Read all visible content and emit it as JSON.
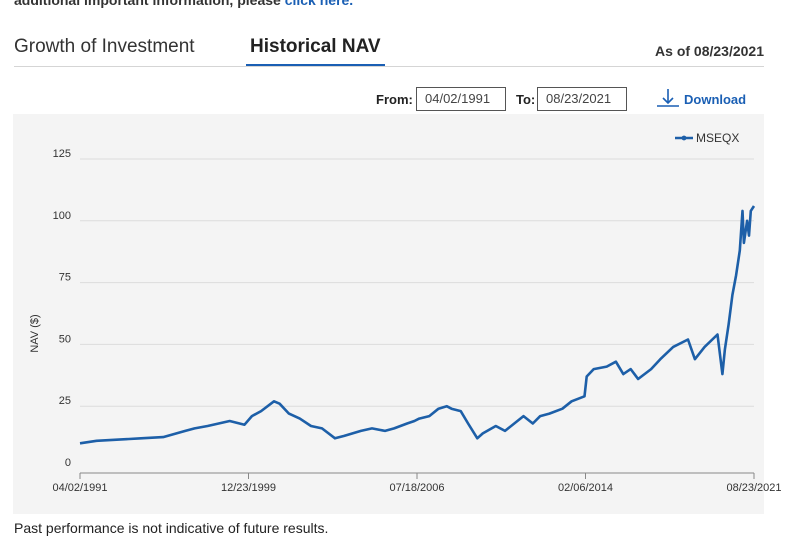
{
  "header": {
    "note_prefix": "additional important information, please ",
    "note_link": "click here."
  },
  "tabs": [
    {
      "label": "Growth of Investment",
      "active": false
    },
    {
      "label": "Historical NAV",
      "active": true
    }
  ],
  "as_of": "As of 08/23/2021",
  "controls": {
    "from_label": "From:",
    "from_value": "04/02/1991",
    "to_label": "To:",
    "to_value": "08/23/2021",
    "download_label": "Download"
  },
  "footer": "Past performance is not indicative of future results.",
  "colors": {
    "line": "#1d5fa8",
    "link": "#1a5fb4",
    "plot_bg": "#f4f4f4",
    "grid": "#dcdcdc"
  },
  "chart_data": {
    "type": "line",
    "title": "",
    "xlabel": "",
    "ylabel": "NAV ($)",
    "ylim": [
      0,
      125
    ],
    "yticks": [
      0,
      25,
      50,
      75,
      100,
      125
    ],
    "xlim": [
      "1991-04-02",
      "2021-08-23"
    ],
    "xtick_labels": [
      "04/02/1991",
      "12/23/1999",
      "07/18/2006",
      "02/06/2014",
      "08/23/2021"
    ],
    "grid": true,
    "legend_position": "top-right",
    "series": [
      {
        "name": "MSEQX",
        "x": [
          "1991-04-02",
          "1992-01-01",
          "1993-01-01",
          "1994-01-01",
          "1995-01-01",
          "1996-01-01",
          "1996-06-01",
          "1997-01-01",
          "1998-01-01",
          "1998-09-01",
          "1999-01-01",
          "1999-06-01",
          "2000-01-01",
          "2000-04-01",
          "2000-09-01",
          "2001-03-01",
          "2001-09-01",
          "2002-03-01",
          "2002-10-01",
          "2003-03-01",
          "2003-12-01",
          "2004-06-01",
          "2005-01-01",
          "2005-06-01",
          "2006-01-01",
          "2006-05-01",
          "2006-07-18",
          "2007-01-01",
          "2007-06-01",
          "2007-10-15",
          "2008-01-01",
          "2008-06-01",
          "2008-10-01",
          "2009-03-01",
          "2009-06-01",
          "2010-01-01",
          "2010-06-01",
          "2011-04-01",
          "2011-09-01",
          "2012-01-01",
          "2012-06-01",
          "2013-01-01",
          "2013-06-01",
          "2014-01-01",
          "2014-02-06",
          "2014-06-01",
          "2015-01-01",
          "2015-06-01",
          "2015-10-01",
          "2016-02-01",
          "2016-06-01",
          "2017-01-01",
          "2017-06-01",
          "2018-01-01",
          "2018-09-01",
          "2018-12-24",
          "2019-06-01",
          "2019-12-31",
          "2020-03-20",
          "2020-05-01",
          "2020-07-01",
          "2020-09-01",
          "2020-11-01",
          "2021-01-01",
          "2021-02-15",
          "2021-03-10",
          "2021-05-01",
          "2021-06-01",
          "2021-07-01",
          "2021-08-23"
        ],
        "values": [
          10,
          11,
          11.5,
          12,
          12.5,
          15,
          16,
          17,
          19,
          17.5,
          21,
          23,
          27,
          26,
          22,
          20,
          17,
          16,
          12,
          13,
          15,
          16,
          15,
          16,
          18,
          19,
          20,
          21,
          24,
          25,
          24,
          23,
          18,
          12,
          14,
          17,
          15,
          21,
          18,
          21,
          22,
          24,
          27,
          29,
          37,
          40,
          41,
          43,
          38,
          40,
          36,
          40,
          44,
          49,
          52,
          44,
          49,
          54,
          38,
          48,
          58,
          70,
          78,
          88,
          104,
          91,
          100,
          94,
          104,
          106
        ]
      }
    ]
  }
}
